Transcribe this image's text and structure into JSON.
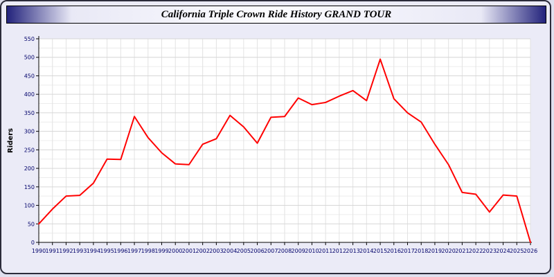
{
  "title": "California Triple Crown Ride History GRAND TOUR",
  "colors": {
    "page_background": "#ebebf7",
    "plot_background": "#ffffff",
    "line": "#ff0000",
    "grid_major": "#d6d6d6",
    "grid_minor": "#ececec",
    "axis": "#000000",
    "tick_label": "#00006a",
    "title_bar_navy": "#23237c"
  },
  "chart_data": {
    "type": "line",
    "title": "California Triple Crown Ride History GRAND TOUR",
    "xlabel": "",
    "ylabel": "Riders",
    "ylim": [
      0,
      550
    ],
    "ytick_step": 50,
    "yticks": [
      0,
      50,
      100,
      150,
      200,
      250,
      300,
      350,
      400,
      450,
      500,
      550
    ],
    "grid": true,
    "legend_position": "none",
    "line_color": "#ff0000",
    "x": [
      1990,
      1991,
      1992,
      1993,
      1994,
      1995,
      1996,
      1997,
      1998,
      1999,
      2000,
      2001,
      2002,
      2003,
      2004,
      2005,
      2006,
      2007,
      2008,
      2009,
      2010,
      2011,
      2012,
      2013,
      2014,
      2015,
      2016,
      2017,
      2018,
      2019,
      2020,
      2021,
      2022,
      2023,
      2024,
      2025,
      2026
    ],
    "values": [
      50,
      90,
      125,
      127,
      160,
      225,
      224,
      340,
      283,
      242,
      212,
      210,
      265,
      280,
      343,
      312,
      268,
      338,
      340,
      390,
      372,
      378,
      395,
      410,
      383,
      495,
      388,
      350,
      325,
      265,
      210,
      135,
      130,
      82,
      128,
      125,
      0
    ]
  }
}
